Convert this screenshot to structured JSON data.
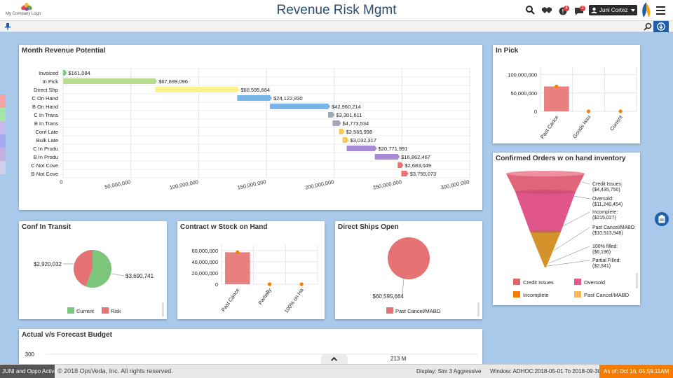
{
  "header": {
    "logo_text": "My Company Logo",
    "title": "Revenue Risk Mgmt",
    "notifications": [
      {
        "icon": "alert-icon",
        "count": "4"
      },
      {
        "icon": "message-icon",
        "count": "2"
      }
    ],
    "user_name": "Juni Cortez",
    "colors": {
      "title": "#2c4b70",
      "dark": "#2a2a2a",
      "badge": "#e53935"
    }
  },
  "month_revenue": {
    "title": "Month Revenue Potential",
    "chart_data": {
      "type": "bar",
      "subtype": "waterfall-horizontal",
      "categories": [
        "Invoiced",
        "In Pick",
        "Direct Shp",
        "C On Hand",
        "B On Hand",
        "C In Trans",
        "B In Trans",
        "Conf Late",
        "Bulk Late",
        "C In Produ",
        "B In Produ",
        "C Not Cove",
        "B Not Cove"
      ],
      "values": [
        161084,
        67699096,
        60595664,
        24122930,
        42960214,
        3301611,
        4773534,
        2565998,
        3032317,
        20771991,
        16862467,
        2683049,
        3759073
      ],
      "value_labels": [
        "$161,084",
        "$67,699,096",
        "$60,595,664",
        "$24,122,930",
        "$42,960,214",
        "$3,301,611",
        "$4,773,534",
        "$2,565,998",
        "$3,032,317",
        "$20,771,991",
        "$16,862,467",
        "$2,683,049",
        "$3,759,073"
      ],
      "colors": [
        "#7ac77a",
        "#b9dc8c",
        "#fdf08f",
        "#78b6ea",
        "#78b6ea",
        "#9fa8b3",
        "#9fa8b3",
        "#fbc75a",
        "#fbc75a",
        "#a88bd6",
        "#a88bd6",
        "#ef6f6f",
        "#ef6f6f"
      ],
      "xlim": [
        0,
        300000000
      ],
      "xticks": [
        0,
        50000000,
        100000000,
        150000000,
        200000000,
        250000000,
        300000000
      ],
      "xtick_labels": [
        "0",
        "50,000,000",
        "100,000,000",
        "150,000,000",
        "200,000,000",
        "250,000,000",
        "300,000,000"
      ]
    }
  },
  "in_pick": {
    "title": "In Pick",
    "chart_data": {
      "type": "bar",
      "categories": [
        "Past Cance",
        "Goods Issu",
        "Current"
      ],
      "values": [
        67699096,
        0,
        0
      ],
      "ylim": [
        0,
        120000000
      ],
      "yticks": [
        0,
        50000000,
        100000000
      ],
      "ytick_labels": [
        "0",
        "50,000,000",
        "100,000,000"
      ],
      "color": "#e98080",
      "marker_color": "#f57c00"
    }
  },
  "confirmed_orders": {
    "title": "Confirmed Orders w on hand inventory",
    "chart_data": {
      "type": "funnel",
      "labels": [
        "Credit Issues:",
        "Oversold:",
        "Incomplete:",
        "Past Cancel/MABD:",
        "100% filled:",
        "Partial Filled:"
      ],
      "value_labels": [
        "($4,435,750)",
        "($11,240,454)",
        "($215,027)",
        "($10,913,948)",
        "($6,196)",
        "($2,341)"
      ],
      "values": [
        -4435750,
        -11240454,
        -215027,
        -10913948,
        -6196,
        -2341
      ]
    },
    "legend": [
      {
        "label": "Credit Issues",
        "color": "#e06666"
      },
      {
        "label": "Oversold",
        "color": "#e25a8a"
      },
      {
        "label": "Incomplete",
        "color": "#f57c00"
      },
      {
        "label": "Past Cancel/MABD",
        "color": "#f6b85a"
      }
    ]
  },
  "conf_in_transit": {
    "title": "Conf In Transit",
    "chart_data": {
      "type": "pie",
      "labels": [
        "Current",
        "Risk"
      ],
      "values": [
        3690741,
        2920032
      ],
      "value_labels": [
        "$3,690,741",
        "$2,920,032"
      ],
      "colors": [
        "#7bc67b",
        "#e57373"
      ]
    }
  },
  "contract_stock": {
    "title": "Contract w Stock on Hand",
    "chart_data": {
      "type": "bar",
      "categories": [
        "Past Cance",
        "Partially",
        "100% on Ha"
      ],
      "values": [
        57000000,
        0,
        0
      ],
      "ylim": [
        0,
        70000000
      ],
      "yticks": [
        0,
        20000000,
        40000000,
        60000000
      ],
      "ytick_labels": [
        "0",
        "20,000,000",
        "40,000,000",
        "60,000,000"
      ],
      "color": "#e98080",
      "marker_color": "#f57c00"
    }
  },
  "direct_ships": {
    "title": "Direct Ships Open",
    "chart_data": {
      "type": "pie",
      "labels": [
        "Past Cancel/MABD"
      ],
      "values": [
        60595664
      ],
      "value_labels": [
        "$60,595,664"
      ],
      "colors": [
        "#e57373"
      ]
    }
  },
  "actual_forecast": {
    "title": "Actual v/s Forecast Budget",
    "chart_data": {
      "type": "bar",
      "ytick_labels": [
        "300"
      ],
      "annotation": "213 M"
    }
  },
  "footer": {
    "active_label": "JUNI and Oppo Active",
    "copyright": "© 2018 OpsVeda, Inc. All rights reserved.",
    "display": "Display: Sim 3 Aggressive",
    "window": "Window: ADHOC:2018-05-01 To 2018-09-30",
    "as_of": "As of: Oct 16, 05:59:11AM",
    "colors": {
      "active_bg": "#555555",
      "as_of_bg": "#f57c00"
    }
  }
}
